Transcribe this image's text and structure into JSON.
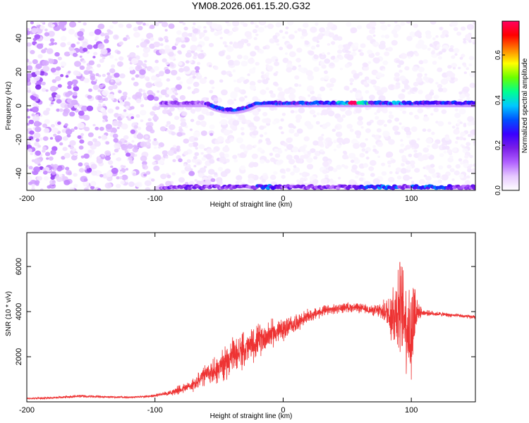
{
  "chart_data": [
    {
      "type": "heatmap",
      "title": "YM08.2026.061.15.20.G32",
      "xlabel": "Height of straight line (km)",
      "ylabel": "Frequency (Hz)",
      "xlim": [
        -200,
        150
      ],
      "ylim": [
        -50,
        50
      ],
      "xticks": [
        -200,
        -100,
        0,
        100
      ],
      "xtick_labels": [
        "-200",
        "-100",
        "0",
        "100"
      ],
      "yticks": [
        -40,
        -20,
        0,
        20,
        40
      ],
      "ytick_labels": [
        "-40",
        "-20",
        "0",
        "20",
        "40"
      ],
      "colorbar": {
        "label": "Normalized spectral amplitude",
        "range": [
          0,
          0.75
        ],
        "ticks": [
          0,
          0.2,
          0.4,
          0.6
        ],
        "tick_labels": [
          "0.0",
          "0.2",
          "0.4",
          "0.6"
        ],
        "colormap": [
          "#ffffff",
          "#e6c8ff",
          "#b060ff",
          "#7a1ee8",
          "#3a00ff",
          "#0050ff",
          "#00c8ff",
          "#00ff90",
          "#6aff00",
          "#ffff00",
          "#ff8000",
          "#ff0000",
          "#ff0060"
        ]
      },
      "features": [
        {
          "name": "main tone",
          "frequency_hz": 1.5,
          "x_from": -95,
          "x_to": 150,
          "peak_amplitude": 0.75,
          "peak_at": 55
        },
        {
          "name": "tone dip",
          "frequency_hz": -2.5,
          "x_from": -60,
          "x_to": -20
        },
        {
          "name": "lower edge line",
          "frequency_hz": -48,
          "x_from": -95,
          "x_to": 150,
          "peak_amplitude": 0.35
        }
      ]
    },
    {
      "type": "line",
      "title": "",
      "xlabel": "Height of straight line (km)",
      "ylabel": "SNR (10 * v/v)",
      "xlim": [
        -200,
        150
      ],
      "ylim": [
        0,
        7500
      ],
      "xticks": [
        -200,
        -100,
        0,
        100
      ],
      "xtick_labels": [
        "-200",
        "-100",
        "0",
        "100"
      ],
      "yticks": [
        2000,
        4000,
        6000
      ],
      "ytick_labels": [
        "2000",
        "4000",
        "6000"
      ],
      "color": "#ee3333",
      "series": [
        {
          "name": "SNR",
          "x": [
            -200,
            -180,
            -160,
            -140,
            -120,
            -110,
            -100,
            -90,
            -80,
            -70,
            -60,
            -50,
            -40,
            -30,
            -20,
            -10,
            0,
            10,
            20,
            30,
            40,
            50,
            60,
            70,
            80,
            85,
            90,
            95,
            100,
            103,
            105,
            110,
            120,
            130,
            140,
            150
          ],
          "y": [
            150,
            180,
            250,
            220,
            200,
            230,
            280,
            380,
            550,
            750,
            1200,
            1500,
            2000,
            2300,
            2700,
            3000,
            3200,
            3500,
            3800,
            4000,
            4100,
            4200,
            4150,
            4050,
            4000,
            3900,
            4200,
            3800,
            2800,
            4200,
            4000,
            3950,
            3900,
            3850,
            3800,
            3750
          ],
          "noise_amplitude": [
            50,
            50,
            80,
            60,
            50,
            60,
            80,
            120,
            250,
            350,
            600,
            800,
            900,
            900,
            850,
            750,
            600,
            450,
            350,
            300,
            250,
            250,
            250,
            250,
            600,
            1800,
            2500,
            2500,
            3000,
            2500,
            400,
            150,
            120,
            100,
            100,
            100
          ]
        }
      ]
    }
  ]
}
